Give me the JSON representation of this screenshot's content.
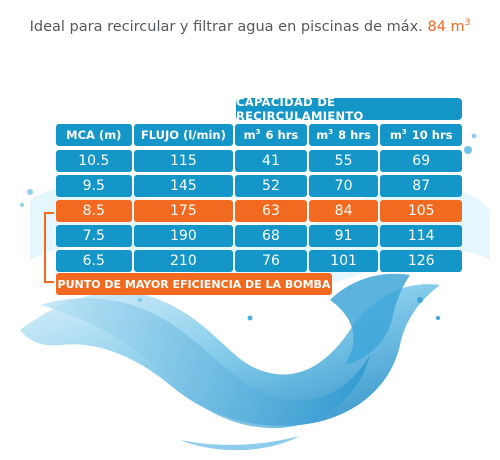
{
  "headline": {
    "text": "Ideal para recircular y filtrar agua en piscinas de máx.",
    "accent": "84 m",
    "accent_sup": "3"
  },
  "capacity_header": "CAPACIDAD DE RECIRCULAMIENTO",
  "columns": [
    {
      "sup": "",
      "label": "MCA (m)"
    },
    {
      "sup": "",
      "label": "FLUJO (l/min)"
    },
    {
      "sup": "3",
      "label": "m 6 hrs"
    },
    {
      "sup": "3",
      "label": "m 8 hrs"
    },
    {
      "sup": "3",
      "label": "m 10 hrs"
    }
  ],
  "rows": [
    [
      "10.5",
      "115",
      "41",
      "55",
      "69"
    ],
    [
      "9.5",
      "145",
      "52",
      "70",
      "87"
    ],
    [
      "8.5",
      "175",
      "63",
      "84",
      "105"
    ],
    [
      "7.5",
      "190",
      "68",
      "91",
      "114"
    ],
    [
      "6.5",
      "210",
      "76",
      "101",
      "126"
    ]
  ],
  "highlight_row": 2,
  "note": "PUNTO DE MAYOR EFICIENCIA DE LA BOMBA",
  "colors": {
    "accent": "#f26a20",
    "table_blue": "#1596c9",
    "text_gray": "#555a5e"
  }
}
